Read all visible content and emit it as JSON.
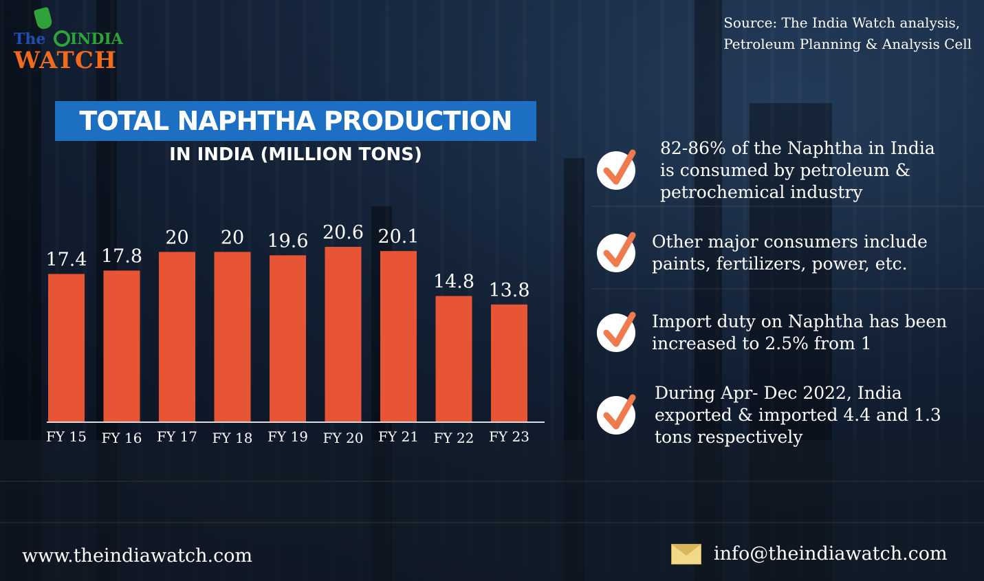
{
  "logo": {
    "the": "The",
    "india": "INDIA",
    "watch": "WATCH"
  },
  "source": {
    "line1": "Source: The India Watch analysis,",
    "line2": "Petroleum Planning & Analysis Cell"
  },
  "chart_data": {
    "type": "bar",
    "title": "TOTAL NAPHTHA PRODUCTION",
    "subtitle": "IN INDIA (MILLION TONS)",
    "categories": [
      "FY 15",
      "FY 16",
      "FY 17",
      "FY 18",
      "FY 19",
      "FY 20",
      "FY 21",
      "FY 22",
      "FY 23"
    ],
    "values": [
      17.4,
      17.8,
      20,
      20,
      19.6,
      20.6,
      20.1,
      14.8,
      13.8
    ],
    "value_labels": [
      "17.4",
      "17.8",
      "20",
      "20",
      "19.6",
      "20.6",
      "20.1",
      "14.8",
      "13.8"
    ],
    "bar_color": "#e85535",
    "ylim": [
      0,
      20.6
    ],
    "grid": false
  },
  "bullets": [
    {
      "icon": "check-icon",
      "text": "82-86% of the Naphtha in India is consumed by petroleum & petrochemical industry"
    },
    {
      "icon": "check-icon",
      "text": "Other major consumers include paints, fertilizers, power, etc."
    },
    {
      "icon": "check-icon",
      "text": "Import duty on Naphtha has been increased to 2.5% from 1"
    },
    {
      "icon": "check-icon",
      "text": "During Apr- Dec 2022, India exported & imported 4.4 and 1.3 tons respectively"
    }
  ],
  "footer": {
    "website": "www.theindiawatch.com",
    "email": "info@theindiawatch.com",
    "email_icon": "envelope-icon"
  }
}
